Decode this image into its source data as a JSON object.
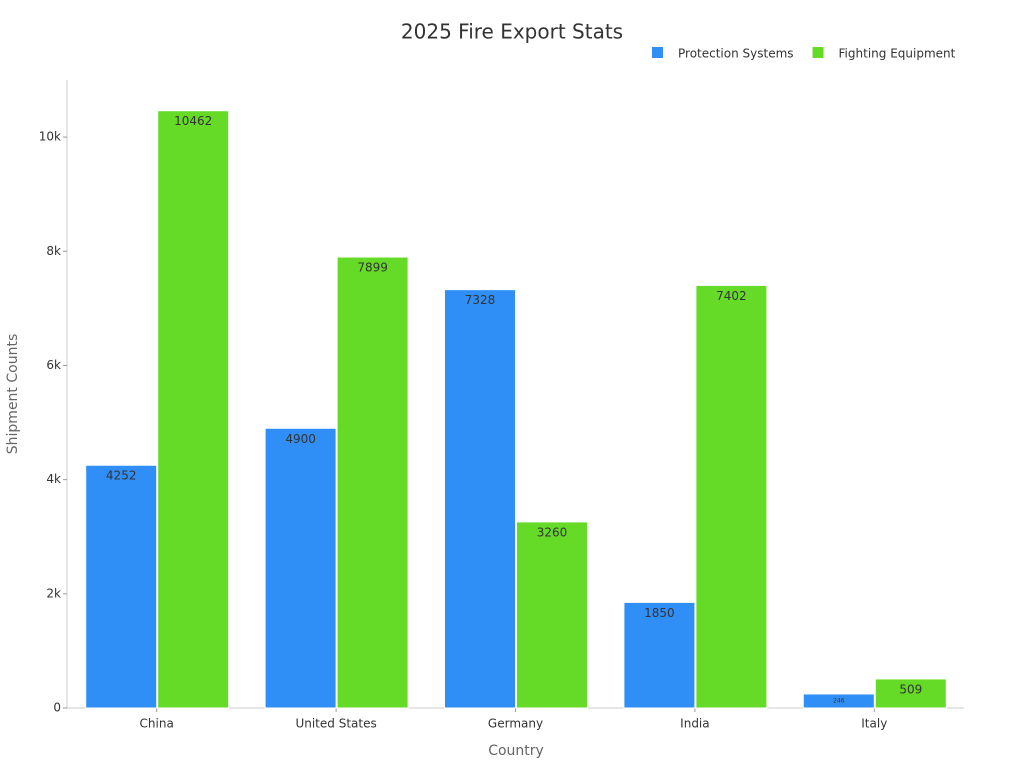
{
  "chart_data": {
    "type": "bar",
    "title": "2025 Fire Export Stats",
    "x_label": "Country",
    "y_label": "Shipment Counts",
    "categories": [
      "China",
      "United States",
      "Germany",
      "India",
      "Italy"
    ],
    "series": [
      {
        "name": "Protection Systems",
        "color": "#2f8ff7",
        "values": [
          4252,
          4900,
          7328,
          1850,
          246
        ]
      },
      {
        "name": "Fighting Equipment",
        "color": "#66db27",
        "values": [
          10462,
          7899,
          3260,
          7402,
          509
        ]
      }
    ],
    "ylim": [
      0,
      11000
    ],
    "yticks": [
      0,
      {
        "value": 2000,
        "label": "2k"
      },
      {
        "value": 4000,
        "label": "4k"
      },
      {
        "value": 6000,
        "label": "6k"
      },
      {
        "value": 8000,
        "label": "8k"
      },
      {
        "value": 10000,
        "label": "10k"
      }
    ],
    "grid": false,
    "legend": "top-right"
  }
}
